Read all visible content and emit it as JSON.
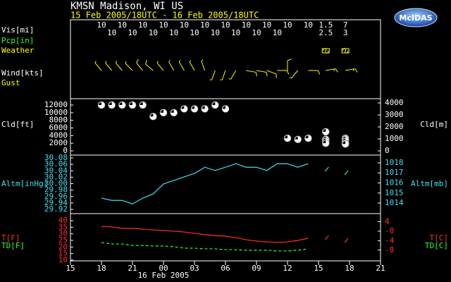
{
  "chart_data": {
    "type": "meteogram",
    "title": "KMSN  Madison, WI US",
    "subtitle": "15 Feb 2005/18UTC - 16 Feb 2005/18UTC",
    "logo": "McIDAS",
    "xlabel": "16 Feb 2005",
    "xlim": [
      15,
      45
    ],
    "xticks": [
      15,
      18,
      21,
      {
        "value": 24,
        "label": "00"
      },
      {
        "value": 27,
        "label": "03"
      },
      {
        "value": 30,
        "label": "06"
      },
      {
        "value": 33,
        "label": "09"
      },
      {
        "value": 36,
        "label": "12"
      },
      {
        "value": 39,
        "label": "15"
      },
      {
        "value": 42,
        "label": "18"
      },
      {
        "value": 45,
        "label": "21"
      }
    ],
    "vis_label": "Vis[mi]",
    "pcp_label": "Pcp[in]",
    "gust_label": "Gust",
    "vis": [
      {
        "x": [
          18,
          20,
          22,
          24,
          26,
          28,
          30,
          32,
          34,
          36,
          38,
          39.7,
          41.6
        ],
        "values": [
          10,
          10,
          10,
          10,
          10,
          10,
          10,
          10,
          10,
          10,
          10,
          1.5,
          7
        ]
      },
      {
        "x": [
          19,
          21,
          23,
          25,
          27,
          29,
          31,
          33,
          35,
          39.7,
          41.6
        ],
        "values": [
          10,
          10,
          10,
          10,
          10,
          10,
          10,
          10,
          10,
          2.5,
          3
        ]
      }
    ],
    "weather": {
      "label": "Weather",
      "x": [
        39.7,
        41.6
      ],
      "color": "#ffff00"
    },
    "wind": {
      "label": "Wind[kts]",
      "color": "#ffff00",
      "x": [
        18,
        19,
        20,
        21,
        22,
        23,
        24,
        25,
        26,
        27,
        28,
        29,
        30,
        31,
        32,
        33,
        34,
        35,
        36,
        37,
        38,
        39.7,
        41.6
      ],
      "direction": [
        320,
        320,
        320,
        315,
        320,
        310,
        320,
        330,
        330,
        330,
        340,
        200,
        200,
        210,
        100,
        100,
        110,
        90,
        360,
        220,
        90,
        80,
        80
      ],
      "speed": [
        8,
        8,
        8,
        8,
        10,
        10,
        8,
        8,
        8,
        8,
        8,
        6,
        6,
        6,
        12,
        12,
        10,
        10,
        12,
        6,
        10,
        15,
        15
      ]
    },
    "cloud": {
      "ylabel": "Cld[ft]",
      "y2label": "Cld[m]",
      "color": "#ffffff",
      "ylim": [
        0,
        12000
      ],
      "yticks": [
        0,
        2000,
        4000,
        6000,
        8000,
        10000,
        12000
      ],
      "y2lim": [
        0,
        3824
      ],
      "y2ticks": [
        0,
        1000,
        2000,
        3000,
        4000
      ],
      "x": [
        18,
        19,
        20,
        21,
        22,
        23,
        24,
        25,
        26,
        27,
        28,
        29,
        30,
        36,
        37,
        38,
        39.7,
        39.7,
        39.7,
        39.7,
        41.6,
        41.6,
        41.6,
        41.6,
        41.6
      ],
      "values": [
        12000,
        12000,
        12000,
        12000,
        12000,
        9000,
        10000,
        10000,
        11000,
        11000,
        11000,
        12000,
        11000,
        3300,
        3000,
        3300,
        5000,
        3000,
        2500,
        2000,
        3300,
        3000,
        2500,
        2000,
        1800
      ]
    },
    "altimeter": {
      "ylabel": "Altm[inHg]",
      "y2label": "Altm[mb]",
      "color": "#40e0f0",
      "ylim": [
        29.92,
        30.08
      ],
      "yticks": [
        29.92,
        29.94,
        29.96,
        29.98,
        {
          "value": 30,
          "label": "30.00"
        },
        30.02,
        30.04,
        30.06,
        30.08
      ],
      "y2lim": [
        1013.37,
        1018.49
      ],
      "y2ticks": [
        1014,
        1015,
        1016,
        1017,
        1018
      ],
      "x": [
        18,
        19,
        20,
        21,
        22,
        23,
        24,
        25,
        26,
        27,
        28,
        29,
        30,
        31,
        32,
        33,
        34,
        35,
        36,
        37,
        38,
        39.7,
        41.6
      ],
      "values": [
        29.955,
        29.948,
        29.948,
        29.937,
        29.955,
        29.968,
        29.999,
        30.01,
        30.021,
        30.032,
        30.051,
        30.041,
        30.051,
        30.062,
        30.051,
        30.051,
        30.041,
        30.062,
        30.062,
        30.051,
        30.062,
        30.045,
        30.034
      ]
    },
    "temperature": {
      "y2label": "T[C]",
      "y2label2": "TD[C]",
      "label_color": "#ff3030",
      "ylim": [
        10,
        40
      ],
      "yticks": [
        10,
        15,
        20,
        25,
        30,
        35,
        40
      ],
      "y2lim": [
        -12.22,
        4.44
      ],
      "y2ticks": [
        4,
        {
          "value": 0,
          "label": "-0"
        },
        -4,
        -8
      ],
      "series": [
        {
          "name": "T[F]",
          "color": "#ff3030",
          "dashed": false,
          "x": [
            18,
            19,
            20,
            21,
            22,
            23,
            24,
            25,
            26,
            27,
            28,
            29,
            30,
            31,
            32,
            33,
            34,
            35,
            36,
            37,
            38,
            39.7,
            41.6
          ],
          "values": [
            35.7,
            35.2,
            34.1,
            34.1,
            33.6,
            33.0,
            32.5,
            32.0,
            31.4,
            30.4,
            29.3,
            28.7,
            28.2,
            27.1,
            25.5,
            24.5,
            23.9,
            23.4,
            23.9,
            25.0,
            26.6,
            27.1,
            25.0
          ]
        },
        {
          "name": "TD[F]",
          "color": "#30ff30",
          "dashed": true,
          "x": [
            18,
            19,
            20,
            21,
            22,
            23,
            24,
            25,
            26,
            27,
            28,
            29,
            30,
            31,
            32,
            33,
            34,
            35,
            36,
            37,
            38
          ],
          "values": [
            23.4,
            22.3,
            22.3,
            21.2,
            21.2,
            20.7,
            20.7,
            20.2,
            19.1,
            19.1,
            18.6,
            18.6,
            18.0,
            18.0,
            17.5,
            17.5,
            17.5,
            17.0,
            17.0,
            17.5,
            18.6
          ]
        }
      ]
    }
  }
}
